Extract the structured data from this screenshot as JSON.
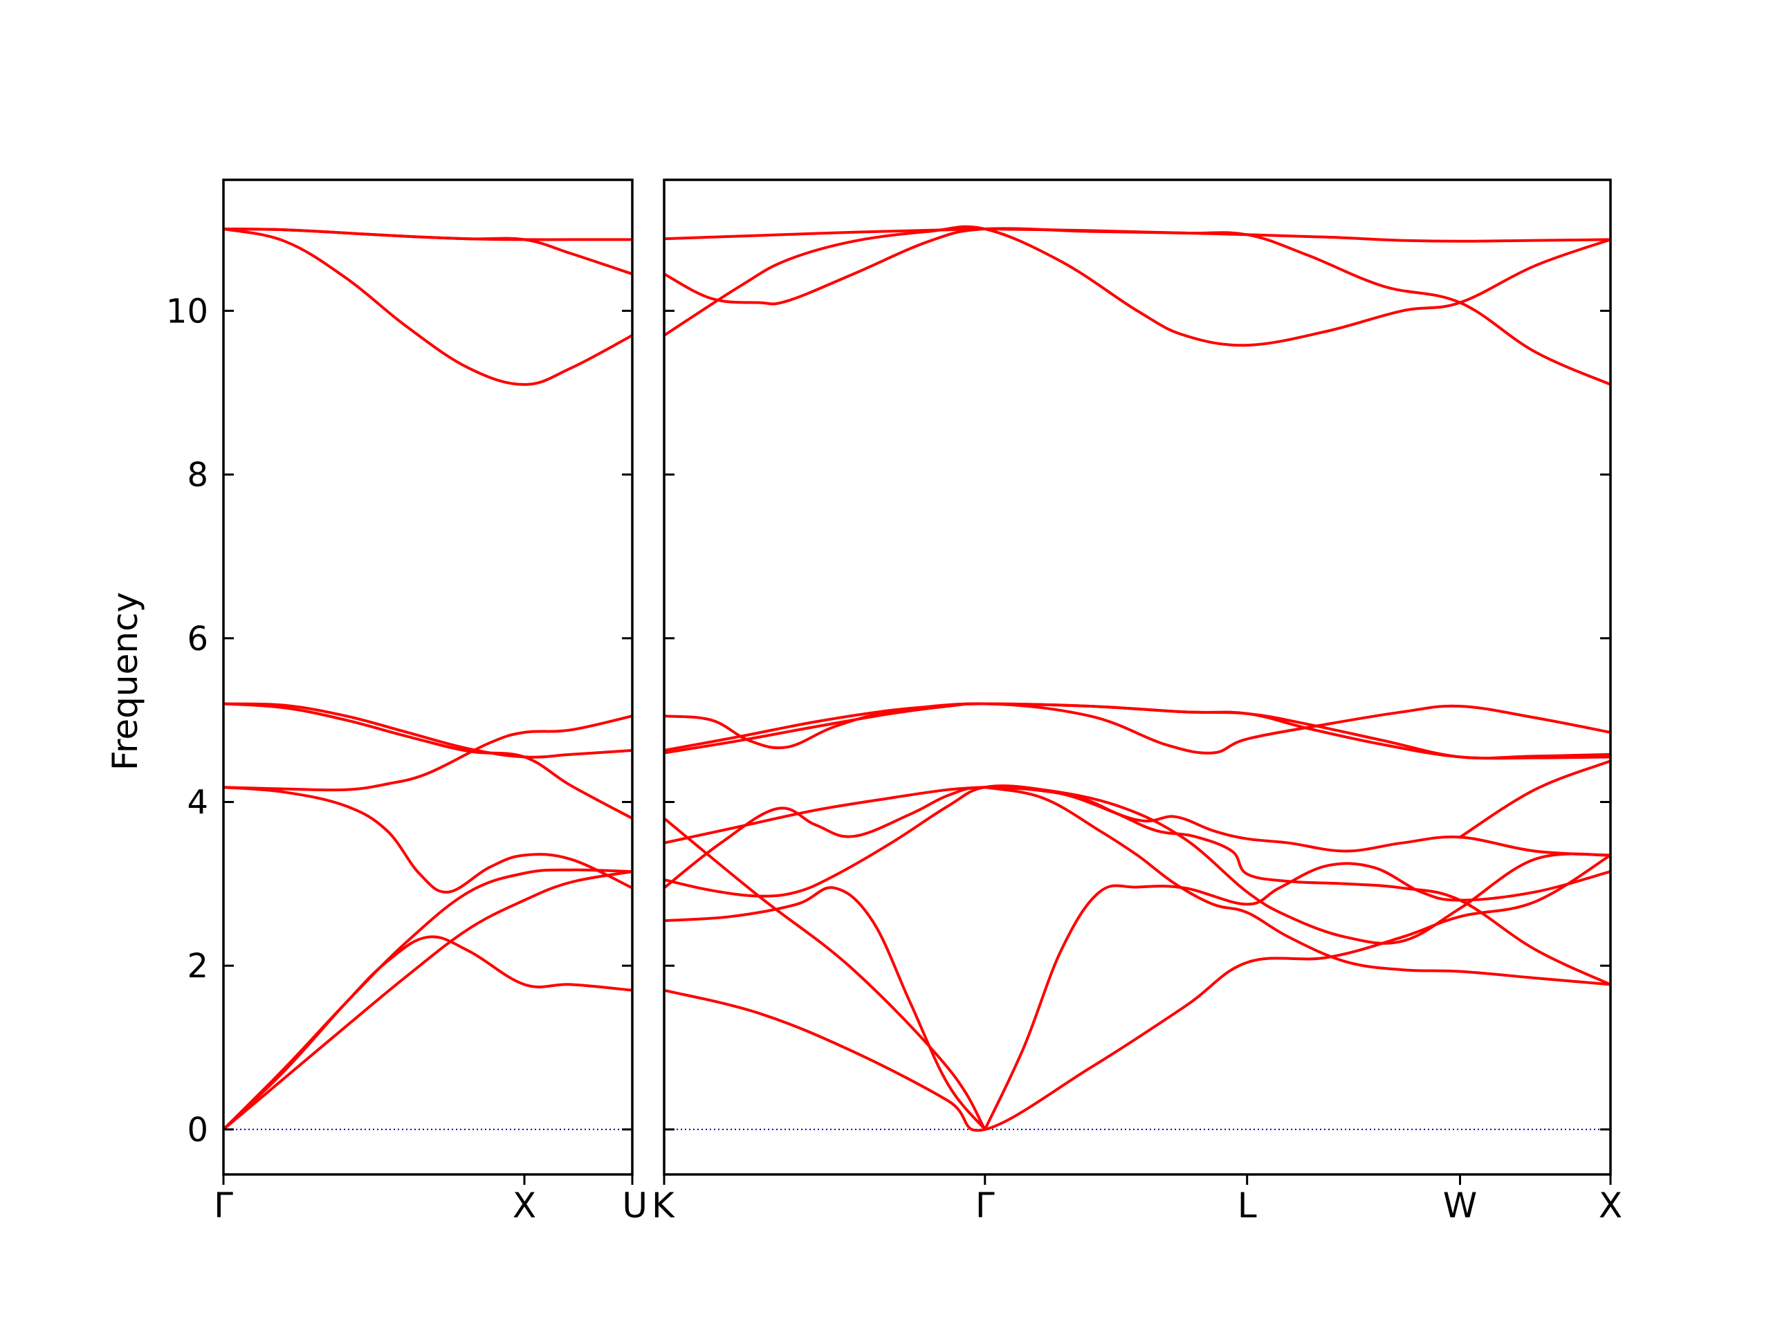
{
  "chart_data": {
    "type": "line",
    "ylabel": "Frequency",
    "ylim": [
      -0.55,
      11.6
    ],
    "yticks": [
      0,
      2,
      4,
      6,
      8,
      10
    ],
    "colors": {
      "bands": "#ff0000",
      "zero_line": "#0000cc",
      "axes": "#000000"
    },
    "zero_line": {
      "y": 0,
      "style": "dotted"
    },
    "segments": [
      {
        "name": "",
        "path_labels": [
          "Γ",
          "X",
          "U"
        ],
        "tick_positions": [
          0,
          0.736,
          1.0
        ],
        "bands": [
          {
            "x": [
              0,
              0.15,
              0.3,
              0.45,
              0.6,
              0.736,
              0.85,
              1.0
            ],
            "y": [
              0.0,
              0.63,
              1.26,
              1.88,
              2.45,
              2.8,
              3.02,
              3.15
            ]
          },
          {
            "x": [
              0,
              0.15,
              0.3,
              0.45,
              0.6,
              0.736,
              0.85,
              1.0
            ],
            "y": [
              0.0,
              0.75,
              1.55,
              2.3,
              2.9,
              3.13,
              3.17,
              3.15
            ]
          },
          {
            "x": [
              0,
              0.15,
              0.3,
              0.4,
              0.5,
              0.6,
              0.736,
              0.85,
              1.0
            ],
            "y": [
              0.0,
              0.72,
              1.55,
              2.05,
              2.35,
              2.18,
              1.77,
              1.77,
              1.7
            ]
          },
          {
            "x": [
              0,
              0.15,
              0.3,
              0.4,
              0.48,
              0.55,
              0.65,
              0.736,
              0.85,
              1.0
            ],
            "y": [
              4.18,
              4.12,
              3.95,
              3.65,
              3.12,
              2.9,
              3.2,
              3.35,
              3.3,
              2.95
            ]
          },
          {
            "x": [
              0,
              0.15,
              0.3,
              0.4,
              0.5,
              0.65,
              0.736,
              0.85,
              1.0
            ],
            "y": [
              4.18,
              4.16,
              4.15,
              4.22,
              4.35,
              4.72,
              4.85,
              4.88,
              5.05
            ]
          },
          {
            "x": [
              0,
              0.15,
              0.3,
              0.45,
              0.6,
              0.736,
              0.85,
              1.0
            ],
            "y": [
              5.2,
              5.18,
              5.05,
              4.85,
              4.65,
              4.55,
              4.58,
              4.63
            ]
          },
          {
            "x": [
              0,
              0.15,
              0.3,
              0.45,
              0.6,
              0.736,
              0.85,
              1.0
            ],
            "y": [
              5.2,
              5.15,
              5.0,
              4.8,
              4.62,
              4.55,
              4.2,
              3.8
            ]
          },
          {
            "x": [
              0,
              0.15,
              0.3,
              0.45,
              0.6,
              0.736,
              0.85,
              1.0
            ],
            "y": [
              11.0,
              10.85,
              10.4,
              9.8,
              9.3,
              9.1,
              9.3,
              9.7
            ]
          },
          {
            "x": [
              0,
              0.15,
              0.3,
              0.45,
              0.6,
              0.736,
              0.85,
              1.0
            ],
            "y": [
              11.0,
              10.99,
              10.95,
              10.91,
              10.88,
              10.87,
              10.87,
              10.87
            ]
          },
          {
            "x": [
              0,
              0.15,
              0.3,
              0.45,
              0.6,
              0.736,
              0.85,
              1.0
            ],
            "y": [
              11.0,
              10.99,
              10.95,
              10.91,
              10.88,
              10.87,
              10.7,
              10.45
            ]
          }
        ]
      },
      {
        "name": "",
        "path_labels": [
          "K",
          "Γ",
          "L",
          "W",
          "X"
        ],
        "tick_positions": [
          0,
          0.339,
          0.616,
          0.841,
          1.0
        ],
        "bands": [
          {
            "x": [
              0,
              0.1,
              0.2,
              0.3,
              0.339,
              0.45,
              0.55,
              0.616,
              0.7,
              0.78,
              0.841,
              0.92,
              1.0
            ],
            "y": [
              1.7,
              1.42,
              0.95,
              0.35,
              0.0,
              0.75,
              1.5,
              2.04,
              2.1,
              2.35,
              2.6,
              2.78,
              3.35
            ]
          },
          {
            "x": [
              0,
              0.1,
              0.2,
              0.3,
              0.339
            ],
            "y": [
              3.8,
              2.85,
              1.95,
              0.75,
              0.0
            ]
          },
          {
            "x": [
              0,
              0.07,
              0.14,
              0.18,
              0.22,
              0.26,
              0.3,
              0.339
            ],
            "y": [
              2.55,
              2.6,
              2.75,
              2.95,
              2.55,
              1.55,
              0.55,
              0.0
            ]
          },
          {
            "x": [
              0.339,
              0.38,
              0.42,
              0.46,
              0.5,
              0.55,
              0.616,
              0.65,
              0.7,
              0.75,
              0.8,
              0.841,
              0.92,
              1.0
            ],
            "y": [
              0.0,
              1.0,
              2.2,
              2.9,
              2.96,
              2.95,
              2.75,
              2.95,
              3.22,
              3.2,
              2.9,
              2.8,
              2.9,
              3.15
            ]
          },
          {
            "x": [
              0.339,
              0.39,
              0.44,
              0.48,
              0.52,
              0.56,
              0.6,
              0.616,
              0.66,
              0.72,
              0.78,
              0.841,
              0.92,
              1.0
            ],
            "y": [
              4.18,
              4.15,
              4.05,
              3.85,
              3.65,
              3.58,
              3.4,
              3.12,
              3.03,
              3.0,
              2.95,
              2.8,
              2.2,
              1.77
            ]
          },
          {
            "x": [
              0.339,
              0.4,
              0.46,
              0.5,
              0.54,
              0.58,
              0.616,
              0.66,
              0.72,
              0.78,
              0.841,
              0.92,
              1.0
            ],
            "y": [
              4.18,
              4.05,
              3.65,
              3.35,
              3.0,
              2.75,
              2.65,
              2.35,
              2.05,
              1.95,
              1.93,
              1.85,
              1.77
            ]
          },
          {
            "x": [
              0,
              0.06,
              0.12,
              0.16,
              0.2,
              0.26,
              0.3,
              0.339,
              0.42,
              0.5,
              0.54,
              0.58,
              0.616,
              0.66,
              0.72,
              0.78,
              0.841,
              0.92,
              1.0
            ],
            "y": [
              2.95,
              3.5,
              3.92,
              3.72,
              3.58,
              3.85,
              4.08,
              4.18,
              4.1,
              3.78,
              3.82,
              3.65,
              3.55,
              3.5,
              3.4,
              3.5,
              3.57,
              3.4,
              3.35
            ]
          },
          {
            "x": [
              0,
              0.05,
              0.1,
              0.14,
              0.18,
              0.24,
              0.3,
              0.339,
              0.4,
              0.48,
              0.55,
              0.616,
              0.66,
              0.72,
              0.78,
              0.841,
              0.92,
              1.0
            ],
            "y": [
              3.05,
              2.92,
              2.85,
              2.9,
              3.1,
              3.5,
              3.95,
              4.18,
              4.15,
              3.95,
              3.55,
              2.9,
              2.6,
              2.35,
              2.3,
              2.7,
              3.3,
              3.35
            ]
          },
          {
            "x": [
              0,
              0.08,
              0.16,
              0.24,
              0.3,
              0.339
            ],
            "y": [
              3.5,
              3.7,
              3.9,
              4.05,
              4.15,
              4.18
            ]
          },
          {
            "x": [
              0,
              0.05,
              0.09,
              0.13,
              0.18,
              0.24,
              0.339,
              0.45,
              0.53,
              0.58,
              0.616,
              0.7,
              0.78,
              0.841,
              0.92,
              1.0
            ],
            "y": [
              5.05,
              5.0,
              4.75,
              4.67,
              4.92,
              5.1,
              5.2,
              5.05,
              4.7,
              4.6,
              4.77,
              4.95,
              5.1,
              5.17,
              5.03,
              4.85
            ]
          },
          {
            "x": [
              0,
              0.08,
              0.16,
              0.24,
              0.3,
              0.339,
              0.45,
              0.55,
              0.616,
              0.68,
              0.76,
              0.841,
              0.92,
              1.0
            ],
            "y": [
              4.6,
              4.75,
              4.92,
              5.08,
              5.17,
              5.2,
              5.17,
              5.1,
              5.08,
              4.9,
              4.7,
              4.55,
              4.54,
              4.55
            ]
          },
          {
            "x": [
              0,
              0.08,
              0.16,
              0.24,
              0.3,
              0.339,
              0.45,
              0.55,
              0.616,
              0.68,
              0.76,
              0.841,
              0.92,
              1.0
            ],
            "y": [
              4.63,
              4.8,
              4.98,
              5.12,
              5.18,
              5.2,
              5.17,
              5.1,
              5.08,
              4.95,
              4.75,
              4.55,
              4.56,
              4.58
            ]
          },
          {
            "x": [
              0.841,
              0.92,
              1.0
            ],
            "y": [
              3.57,
              4.15,
              4.5
            ]
          },
          {
            "x": [
              0,
              0.08,
              0.13,
              0.2,
              0.28,
              0.339,
              0.42,
              0.5,
              0.55,
              0.616,
              0.7,
              0.78,
              0.841,
              0.92,
              1.0
            ],
            "y": [
              9.7,
              10.3,
              10.62,
              10.85,
              10.97,
              11.0,
              10.6,
              10.0,
              9.7,
              9.58,
              9.75,
              10.0,
              10.1,
              10.55,
              10.87
            ]
          },
          {
            "x": [
              0,
              0.05,
              0.1,
              0.13,
              0.2,
              0.28,
              0.339,
              0.45,
              0.55,
              0.616,
              0.68,
              0.76,
              0.841,
              0.92,
              1.0
            ],
            "y": [
              10.45,
              10.15,
              10.1,
              10.12,
              10.45,
              10.85,
              11.0,
              10.97,
              10.95,
              10.93,
              10.68,
              10.3,
              10.1,
              9.5,
              9.1
            ]
          },
          {
            "x": [
              0,
              0.1,
              0.2,
              0.3,
              0.339,
              0.45,
              0.55,
              0.616,
              0.7,
              0.78,
              0.841,
              0.92,
              1.0
            ],
            "y": [
              10.88,
              10.92,
              10.96,
              10.99,
              11.0,
              10.98,
              10.95,
              10.93,
              10.9,
              10.86,
              10.85,
              10.86,
              10.87
            ]
          }
        ]
      }
    ]
  }
}
